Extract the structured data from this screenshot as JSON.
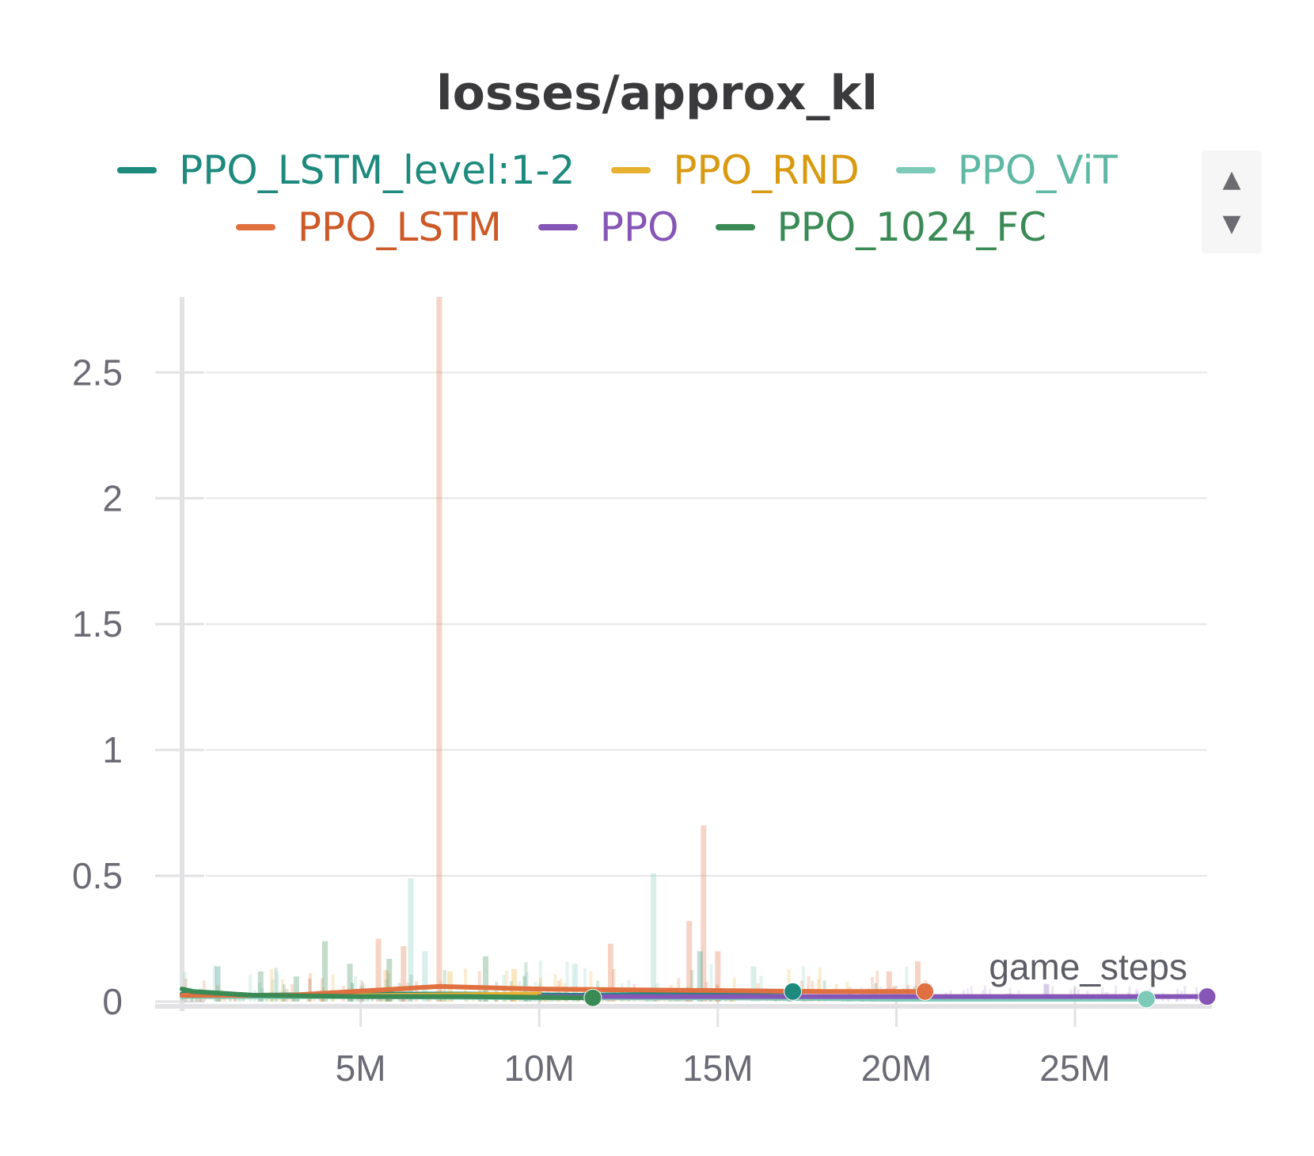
{
  "chart_data": {
    "type": "line",
    "title": "losses/approx_kl",
    "xlabel": "game_steps",
    "ylabel": "",
    "xlim": [
      0,
      28700000
    ],
    "ylim": [
      0,
      2.8
    ],
    "x_ticks": [
      {
        "value": 5000000,
        "label": "5M"
      },
      {
        "value": 10000000,
        "label": "10M"
      },
      {
        "value": 15000000,
        "label": "15M"
      },
      {
        "value": 20000000,
        "label": "20M"
      },
      {
        "value": 25000000,
        "label": "25M"
      }
    ],
    "y_ticks": [
      {
        "value": 0,
        "label": "0"
      },
      {
        "value": 0.5,
        "label": "0.5"
      },
      {
        "value": 1,
        "label": "1"
      },
      {
        "value": 1.5,
        "label": "1.5"
      },
      {
        "value": 2,
        "label": "2"
      },
      {
        "value": 2.5,
        "label": "2.5"
      }
    ],
    "grid": true,
    "legend_position": "top",
    "series": [
      {
        "name": "PPO_LSTM_level:1-2",
        "color": "#1e8a7e",
        "x": [
          0,
          2000000,
          5000000,
          8000000,
          11000000,
          14000000,
          17100000
        ],
        "y": [
          0.03,
          0.025,
          0.03,
          0.03,
          0.025,
          0.03,
          0.04
        ]
      },
      {
        "name": "PPO_RND",
        "color": "#e8b030",
        "x": [
          0,
          3000000,
          6000000,
          10000000
        ],
        "y": [
          0.02,
          0.02,
          0.025,
          0.03
        ]
      },
      {
        "name": "PPO_ViT",
        "color": "#7ecab8",
        "x": [
          0,
          5000000,
          10000000,
          15000000,
          20000000,
          27000000
        ],
        "y": [
          0.02,
          0.02,
          0.015,
          0.015,
          0.01,
          0.01
        ]
      },
      {
        "name": "PPO_LSTM",
        "color": "#e07040",
        "x": [
          0,
          3000000,
          7200000,
          10000000,
          14000000,
          18000000,
          20800000
        ],
        "y": [
          0.025,
          0.025,
          0.06,
          0.05,
          0.045,
          0.04,
          0.04
        ]
      },
      {
        "name": "PPO",
        "color": "#8656b6",
        "x": [
          10000000,
          15000000,
          20000000,
          25000000,
          28700000
        ],
        "y": [
          0.02,
          0.02,
          0.02,
          0.02,
          0.02
        ]
      },
      {
        "name": "PPO_1024_FC",
        "color": "#3a8a55",
        "x": [
          0,
          300000,
          2000000,
          5000000,
          8000000,
          11500000
        ],
        "y": [
          0.05,
          0.04,
          0.025,
          0.02,
          0.02,
          0.015
        ]
      }
    ],
    "spikes": [
      {
        "series": "PPO_LSTM",
        "x": 7200000,
        "y": 2.8
      },
      {
        "series": "PPO_LSTM",
        "x": 14600000,
        "y": 0.7
      },
      {
        "series": "PPO_LSTM",
        "x": 14200000,
        "y": 0.32
      },
      {
        "series": "PPO_LSTM",
        "x": 5500000,
        "y": 0.25
      },
      {
        "series": "PPO_LSTM",
        "x": 15000000,
        "y": 0.2
      },
      {
        "series": "PPO_LSTM",
        "x": 12000000,
        "y": 0.23
      },
      {
        "series": "PPO_LSTM",
        "x": 20600000,
        "y": 0.16
      },
      {
        "series": "PPO_LSTM",
        "x": 19800000,
        "y": 0.12
      },
      {
        "series": "PPO_LSTM",
        "x": 6200000,
        "y": 0.22
      },
      {
        "series": "PPO_ViT",
        "x": 13200000,
        "y": 0.51
      },
      {
        "series": "PPO_ViT",
        "x": 6400000,
        "y": 0.49
      },
      {
        "series": "PPO_ViT",
        "x": 6800000,
        "y": 0.2
      },
      {
        "series": "PPO_ViT",
        "x": 11000000,
        "y": 0.15
      },
      {
        "series": "PPO_ViT",
        "x": 16000000,
        "y": 0.14
      },
      {
        "series": "PPO_1024_FC",
        "x": 4000000,
        "y": 0.24
      },
      {
        "series": "PPO_1024_FC",
        "x": 5800000,
        "y": 0.17
      },
      {
        "series": "PPO_1024_FC",
        "x": 4700000,
        "y": 0.15
      },
      {
        "series": "PPO_1024_FC",
        "x": 8500000,
        "y": 0.18
      },
      {
        "series": "PPO_1024_FC",
        "x": 2200000,
        "y": 0.12
      },
      {
        "series": "PPO_1024_FC",
        "x": 3200000,
        "y": 0.1
      },
      {
        "series": "PPO_RND",
        "x": 9300000,
        "y": 0.13
      },
      {
        "series": "PPO_RND",
        "x": 7500000,
        "y": 0.12
      },
      {
        "series": "PPO_LSTM_level:1-2",
        "x": 14500000,
        "y": 0.2
      },
      {
        "series": "PPO_LSTM_level:1-2",
        "x": 1000000,
        "y": 0.14
      },
      {
        "series": "PPO",
        "x": 24200000,
        "y": 0.07
      },
      {
        "series": "PPO",
        "x": 17000000,
        "y": 0.06
      }
    ]
  },
  "legend": {
    "row1": [
      {
        "label": "PPO_LSTM_level:1-2",
        "swatch": "#1e8a7e",
        "text_color": "#1e8a7e"
      },
      {
        "label": "PPO_RND",
        "swatch": "#e8b030",
        "text_color": "#d89a10"
      },
      {
        "label": "PPO_ViT",
        "swatch": "#7ecab8",
        "text_color": "#5fb8a4"
      }
    ],
    "row2": [
      {
        "label": "PPO_LSTM",
        "swatch": "#e07040",
        "text_color": "#cc5a28"
      },
      {
        "label": "PPO",
        "swatch": "#8656b6",
        "text_color": "#8656b6"
      },
      {
        "label": "PPO_1024_FC",
        "swatch": "#3a8a55",
        "text_color": "#3a8a55"
      }
    ],
    "scroll_up_icon": "triangle-up-icon",
    "scroll_down_icon": "triangle-down-icon"
  }
}
